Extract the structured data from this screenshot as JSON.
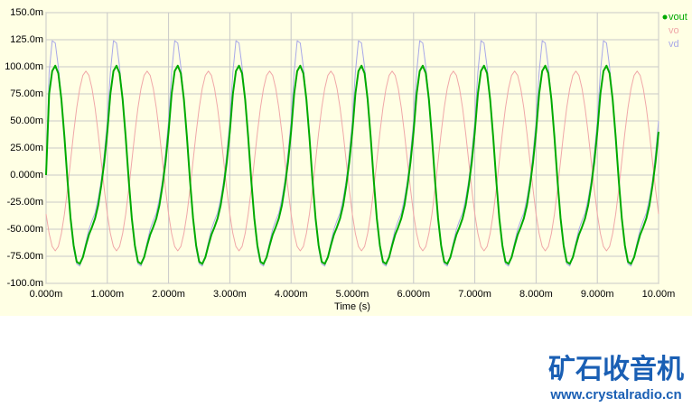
{
  "chart_data": {
    "type": "line",
    "xlabel": "Time (s)",
    "xlim": [
      0,
      10
    ],
    "xticks": [
      {
        "value": 0,
        "label": "0.000m"
      },
      {
        "value": 1,
        "label": "1.000m"
      },
      {
        "value": 2,
        "label": "2.000m"
      },
      {
        "value": 3,
        "label": "3.000m"
      },
      {
        "value": 4,
        "label": "4.000m"
      },
      {
        "value": 5,
        "label": "5.000m"
      },
      {
        "value": 6,
        "label": "6.000m"
      },
      {
        "value": 7,
        "label": "7.000m"
      },
      {
        "value": 8,
        "label": "8.000m"
      },
      {
        "value": 9,
        "label": "9.000m"
      },
      {
        "value": 10,
        "label": "10.00m"
      }
    ],
    "ylim": [
      -100,
      150
    ],
    "yticks": [
      {
        "value": -100,
        "label": "-100.0m"
      },
      {
        "value": -75,
        "label": "-75.00m"
      },
      {
        "value": -50,
        "label": "-50.00m"
      },
      {
        "value": -25,
        "label": "-25.00m"
      },
      {
        "value": 0,
        "label": "0.000m"
      },
      {
        "value": 25,
        "label": "25.00m"
      },
      {
        "value": 50,
        "label": "50.00m"
      },
      {
        "value": 75,
        "label": "75.00m"
      },
      {
        "value": 100,
        "label": "100.00m"
      },
      {
        "value": 125,
        "label": "125.0m"
      },
      {
        "value": 150,
        "label": "150.0m"
      }
    ],
    "grid": true,
    "legend": "right",
    "x": [
      0,
      0.05,
      0.1,
      0.15,
      0.2,
      0.25,
      0.3,
      0.35,
      0.4,
      0.45,
      0.5,
      0.55,
      0.6,
      0.65,
      0.7,
      0.75,
      0.8,
      0.85,
      0.9,
      0.95,
      1,
      1.05,
      1.1,
      1.15,
      1.2,
      1.25,
      1.3,
      1.35,
      1.4,
      1.45,
      1.5,
      1.55,
      1.6,
      1.65,
      1.7,
      1.75,
      1.8,
      1.85,
      1.9,
      1.95,
      2,
      2.05,
      2.1,
      2.15,
      2.2,
      2.25,
      2.3,
      2.35,
      2.4,
      2.45,
      2.5,
      2.55,
      2.6,
      2.65,
      2.7,
      2.75,
      2.8,
      2.85,
      2.9,
      2.95,
      3,
      3.05,
      3.1,
      3.15,
      3.2,
      3.25,
      3.3,
      3.35,
      3.4,
      3.45,
      3.5,
      3.55,
      3.6,
      3.65,
      3.7,
      3.75,
      3.8,
      3.85,
      3.9,
      3.95,
      4,
      4.05,
      4.1,
      4.15,
      4.2,
      4.25,
      4.3,
      4.35,
      4.4,
      4.45,
      4.5,
      4.55,
      4.6,
      4.65,
      4.7,
      4.75,
      4.8,
      4.85,
      4.9,
      4.95,
      5,
      5.05,
      5.1,
      5.15,
      5.2,
      5.25,
      5.3,
      5.35,
      5.4,
      5.45,
      5.5,
      5.55,
      5.6,
      5.65,
      5.7,
      5.75,
      5.8,
      5.85,
      5.9,
      5.95,
      6,
      6.05,
      6.1,
      6.15,
      6.2,
      6.25,
      6.3,
      6.35,
      6.4,
      6.45,
      6.5,
      6.55,
      6.6,
      6.65,
      6.7,
      6.75,
      6.8,
      6.85,
      6.9,
      6.95,
      7,
      7.05,
      7.1,
      7.15,
      7.2,
      7.25,
      7.3,
      7.35,
      7.4,
      7.45,
      7.5,
      7.55,
      7.6,
      7.65,
      7.7,
      7.75,
      7.8,
      7.85,
      7.9,
      7.95,
      8,
      8.05,
      8.1,
      8.15,
      8.2,
      8.25,
      8.3,
      8.35,
      8.4,
      8.45,
      8.5,
      8.55,
      8.6,
      8.65,
      8.7,
      8.75,
      8.8,
      8.85,
      8.9,
      8.95,
      9,
      9.05,
      9.1,
      9.15,
      9.2,
      9.25,
      9.3,
      9.35,
      9.4,
      9.45,
      9.5,
      9.55,
      9.6,
      9.65,
      9.7,
      9.75,
      9.8,
      9.85,
      9.9,
      9.95,
      10
    ],
    "series": [
      {
        "name": "vd",
        "color": "#a8a8e8",
        "width": 1,
        "values": [
          0,
          95,
          124,
          122,
          100,
          70,
          35,
          -5,
          -40,
          -68,
          -82,
          -84,
          -75,
          -62,
          -50,
          -42,
          -35,
          -22,
          -5,
          20,
          50,
          95,
          124,
          122,
          100,
          70,
          35,
          -5,
          -40,
          -68,
          -82,
          -84,
          -75,
          -62,
          -50,
          -42,
          -35,
          -22,
          -5,
          20,
          50,
          95,
          124,
          122,
          100,
          70,
          35,
          -5,
          -40,
          -68,
          -82,
          -84,
          -75,
          -62,
          -50,
          -42,
          -35,
          -22,
          -5,
          20,
          50,
          95,
          124,
          122,
          100,
          70,
          35,
          -5,
          -40,
          -68,
          -82,
          -84,
          -75,
          -62,
          -50,
          -42,
          -35,
          -22,
          -5,
          20,
          50,
          95,
          124,
          122,
          100,
          70,
          35,
          -5,
          -40,
          -68,
          -82,
          -84,
          -75,
          -62,
          -50,
          -42,
          -35,
          -22,
          -5,
          20,
          50,
          95,
          124,
          122,
          100,
          70,
          35,
          -5,
          -40,
          -68,
          -82,
          -84,
          -75,
          -62,
          -50,
          -42,
          -35,
          -22,
          -5,
          20,
          50,
          95,
          124,
          122,
          100,
          70,
          35,
          -5,
          -40,
          -68,
          -82,
          -84,
          -75,
          -62,
          -50,
          -42,
          -35,
          -22,
          -5,
          20,
          50,
          95,
          124,
          122,
          100,
          70,
          35,
          -5,
          -40,
          -68,
          -82,
          -84,
          -75,
          -62,
          -50,
          -42,
          -35,
          -22,
          -5,
          20,
          50,
          95,
          124,
          122,
          100,
          70,
          35,
          -5,
          -40,
          -68,
          -82,
          -84,
          -75,
          -62,
          -50,
          -42,
          -35,
          -22,
          -5,
          20,
          50,
          95,
          124,
          122,
          100,
          70,
          35,
          -5,
          -40,
          -68,
          -82,
          -84,
          -75,
          -62,
          -50,
          -42,
          -35,
          -22,
          -5,
          20,
          50
        ]
      },
      {
        "name": "vo",
        "color": "#f0a8a8",
        "width": 1,
        "values": [
          -36,
          -54,
          -66,
          -70,
          -66,
          -54,
          -36,
          -13,
          13,
          39,
          62,
          80,
          92,
          96,
          92,
          80,
          62,
          39,
          13,
          -13,
          -36,
          -54,
          -66,
          -70,
          -66,
          -54,
          -36,
          -13,
          13,
          39,
          62,
          80,
          92,
          96,
          92,
          80,
          62,
          39,
          13,
          -13,
          -36,
          -54,
          -66,
          -70,
          -66,
          -54,
          -36,
          -13,
          13,
          39,
          62,
          80,
          92,
          96,
          92,
          80,
          62,
          39,
          13,
          -13,
          -36,
          -54,
          -66,
          -70,
          -66,
          -54,
          -36,
          -13,
          13,
          39,
          62,
          80,
          92,
          96,
          92,
          80,
          62,
          39,
          13,
          -13,
          -36,
          -54,
          -66,
          -70,
          -66,
          -54,
          -36,
          -13,
          13,
          39,
          62,
          80,
          92,
          96,
          92,
          80,
          62,
          39,
          13,
          -13,
          -36,
          -54,
          -66,
          -70,
          -66,
          -54,
          -36,
          -13,
          13,
          39,
          62,
          80,
          92,
          96,
          92,
          80,
          62,
          39,
          13,
          -13,
          -36,
          -54,
          -66,
          -70,
          -66,
          -54,
          -36,
          -13,
          13,
          39,
          62,
          80,
          92,
          96,
          92,
          80,
          62,
          39,
          13,
          -13,
          -36,
          -54,
          -66,
          -70,
          -66,
          -54,
          -36,
          -13,
          13,
          39,
          62,
          80,
          92,
          96,
          92,
          80,
          62,
          39,
          13,
          -13,
          -36,
          -54,
          -66,
          -70,
          -66,
          -54,
          -36,
          -13,
          13,
          39,
          62,
          80,
          92,
          96,
          92,
          80,
          62,
          39,
          13,
          -13,
          -36,
          -54,
          -66,
          -70,
          -66,
          -54,
          -36,
          -13,
          13,
          39,
          62,
          80,
          92,
          96,
          92,
          80,
          62,
          39,
          13,
          -13,
          -36
        ]
      },
      {
        "name": "vout",
        "color": "#00aa00",
        "width": 2,
        "values": [
          0,
          75,
          96,
          101,
          94,
          70,
          35,
          -5,
          -40,
          -65,
          -80,
          -82,
          -76,
          -65,
          -55,
          -48,
          -40,
          -28,
          -10,
          12,
          40,
          75,
          96,
          101,
          94,
          70,
          35,
          -5,
          -40,
          -65,
          -80,
          -82,
          -76,
          -65,
          -55,
          -48,
          -40,
          -28,
          -10,
          12,
          40,
          75,
          96,
          101,
          94,
          70,
          35,
          -5,
          -40,
          -65,
          -80,
          -82,
          -76,
          -65,
          -55,
          -48,
          -40,
          -28,
          -10,
          12,
          40,
          75,
          96,
          101,
          94,
          70,
          35,
          -5,
          -40,
          -65,
          -80,
          -82,
          -76,
          -65,
          -55,
          -48,
          -40,
          -28,
          -10,
          12,
          40,
          75,
          96,
          101,
          94,
          70,
          35,
          -5,
          -40,
          -65,
          -80,
          -82,
          -76,
          -65,
          -55,
          -48,
          -40,
          -28,
          -10,
          12,
          40,
          75,
          96,
          101,
          94,
          70,
          35,
          -5,
          -40,
          -65,
          -80,
          -82,
          -76,
          -65,
          -55,
          -48,
          -40,
          -28,
          -10,
          12,
          40,
          75,
          96,
          101,
          94,
          70,
          35,
          -5,
          -40,
          -65,
          -80,
          -82,
          -76,
          -65,
          -55,
          -48,
          -40,
          -28,
          -10,
          12,
          40,
          75,
          96,
          101,
          94,
          70,
          35,
          -5,
          -40,
          -65,
          -80,
          -82,
          -76,
          -65,
          -55,
          -48,
          -40,
          -28,
          -10,
          12,
          40,
          75,
          96,
          101,
          94,
          70,
          35,
          -5,
          -40,
          -65,
          -80,
          -82,
          -76,
          -65,
          -55,
          -48,
          -40,
          -28,
          -10,
          12,
          40,
          75,
          96,
          101,
          94,
          70,
          35,
          -5,
          -40,
          -65,
          -80,
          -82,
          -76,
          -65,
          -55,
          -48,
          -40,
          -28,
          -10,
          12,
          40
        ]
      }
    ],
    "legend_order": [
      2,
      1,
      0
    ],
    "watermark": {
      "title": "矿石收音机",
      "url": "www.crystalradio.cn"
    }
  }
}
